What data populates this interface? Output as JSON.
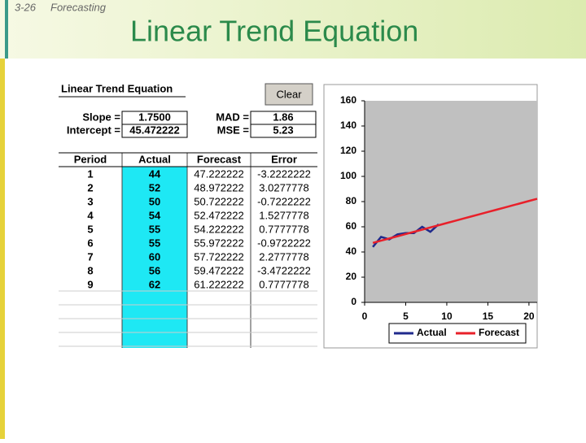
{
  "header": {
    "slide_number": "3-26",
    "section": "Forecasting",
    "title": "Linear Trend Equation"
  },
  "sheet": {
    "title": "Linear Trend Equation",
    "button": "Clear",
    "fields": [
      {
        "label": "Slope =",
        "value": "1.7500"
      },
      {
        "label": "Intercept =",
        "value": "45.472222"
      },
      {
        "label": "MAD =",
        "value": "1.86"
      },
      {
        "label": "MSE =",
        "value": "5.23"
      }
    ]
  },
  "table": {
    "columns": [
      "Period",
      "Actual",
      "Forecast",
      "Error"
    ],
    "rows": [
      [
        "1",
        "44",
        "47.222222",
        "-3.2222222"
      ],
      [
        "2",
        "52",
        "48.972222",
        "3.0277778"
      ],
      [
        "3",
        "50",
        "50.722222",
        "-0.7222222"
      ],
      [
        "4",
        "54",
        "52.472222",
        "1.5277778"
      ],
      [
        "5",
        "55",
        "54.222222",
        "0.7777778"
      ],
      [
        "6",
        "55",
        "55.972222",
        "-0.9722222"
      ],
      [
        "7",
        "60",
        "57.722222",
        "2.2777778"
      ],
      [
        "8",
        "56",
        "59.472222",
        "-3.4722222"
      ],
      [
        "9",
        "62",
        "61.222222",
        "0.7777778"
      ]
    ]
  },
  "chart_data": {
    "type": "line",
    "x": [
      1,
      2,
      3,
      4,
      5,
      6,
      7,
      8,
      9,
      10,
      11,
      12,
      13,
      14,
      15,
      16,
      17,
      18,
      19,
      20,
      21
    ],
    "series": [
      {
        "name": "Actual",
        "color": "#1f2a8c",
        "values": [
          44,
          52,
          50,
          54,
          55,
          55,
          60,
          56,
          62,
          null,
          null,
          null,
          null,
          null,
          null,
          null,
          null,
          null,
          null,
          null,
          null
        ]
      },
      {
        "name": "Forecast",
        "color": "#e8202a",
        "values": [
          47.222222,
          48.972222,
          50.722222,
          52.472222,
          54.222222,
          55.972222,
          57.722222,
          59.472222,
          61.222222,
          62.972222,
          64.722222,
          66.472222,
          68.222222,
          69.972222,
          71.722222,
          73.472222,
          75.222222,
          76.972222,
          78.722222,
          80.472222,
          82.222222
        ]
      }
    ],
    "xlim": [
      0,
      21
    ],
    "xticks": [
      0,
      5,
      10,
      15,
      20
    ],
    "ylim": [
      0,
      160
    ],
    "yticks": [
      0,
      20,
      40,
      60,
      80,
      100,
      120,
      140,
      160
    ],
    "grid": false,
    "legend": "bottom",
    "plot_background": "#c0c0c0"
  }
}
